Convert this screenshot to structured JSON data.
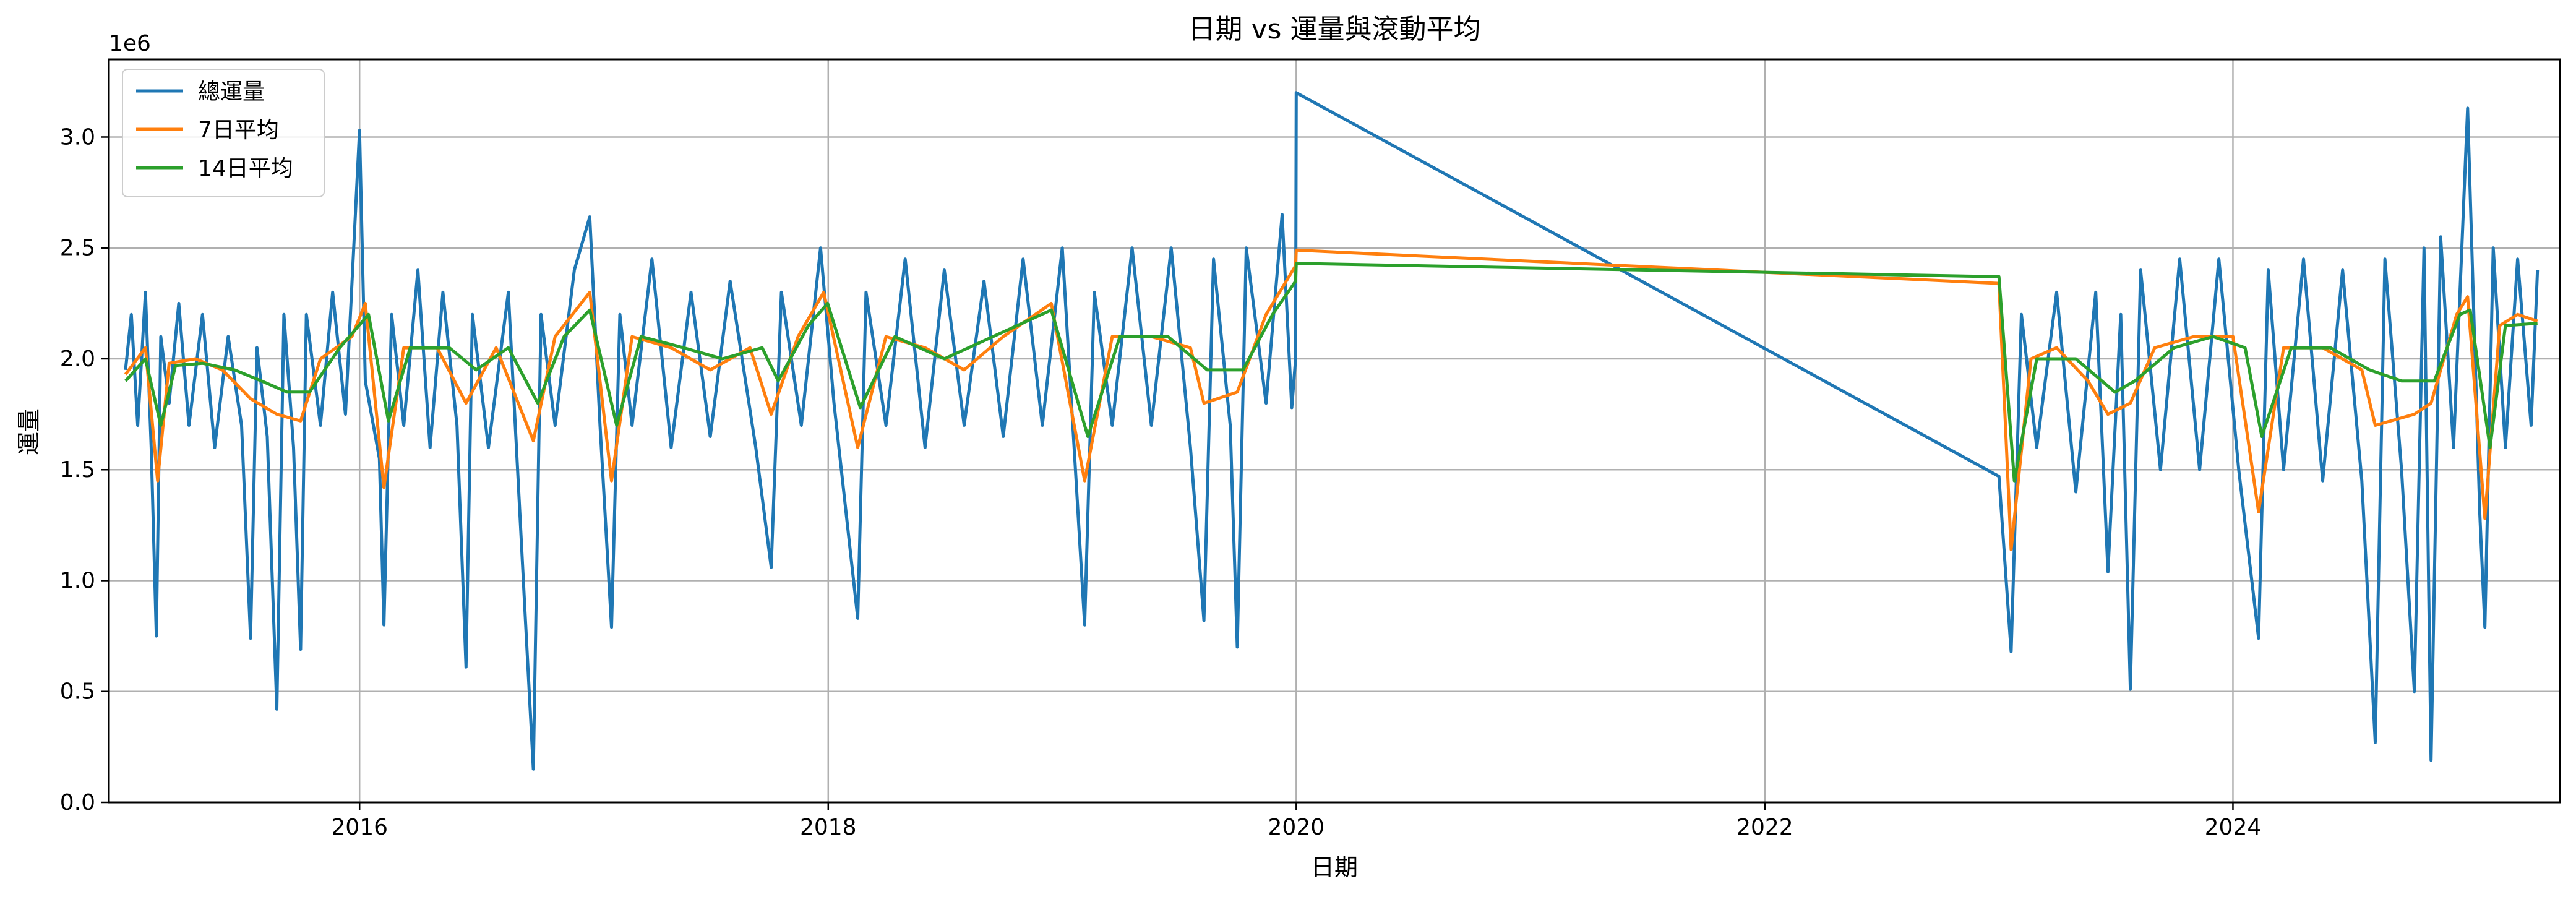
{
  "chart_data": {
    "type": "line",
    "title": "日期 vs 運量與滾動平均",
    "xlabel": "日期",
    "ylabel": "運量",
    "y_multiplier_label": "1e6",
    "xlim": [
      "2014-12-06",
      "2025-05-25"
    ],
    "ylim": [
      0,
      3.35
    ],
    "x_ticks": [
      "2016",
      "2018",
      "2020",
      "2022",
      "2024"
    ],
    "y_ticks": [
      "0.0",
      "0.5",
      "1.0",
      "1.5",
      "2.0",
      "2.5",
      "3.0"
    ],
    "grid": true,
    "legend_position": "upper-left",
    "series": [
      {
        "name": "總運量",
        "color": "#1f77b4",
        "note": "daily values in millions; original series is dense daily data, sampled here",
        "points": [
          [
            "2015-01-01",
            1.95
          ],
          [
            "2015-01-10",
            2.2
          ],
          [
            "2015-01-20",
            1.7
          ],
          [
            "2015-02-01",
            2.3
          ],
          [
            "2015-02-10",
            1.6
          ],
          [
            "2015-02-18",
            0.75
          ],
          [
            "2015-02-25",
            2.1
          ],
          [
            "2015-03-10",
            1.8
          ],
          [
            "2015-03-25",
            2.25
          ],
          [
            "2015-04-10",
            1.7
          ],
          [
            "2015-05-01",
            2.2
          ],
          [
            "2015-05-20",
            1.6
          ],
          [
            "2015-06-10",
            2.1
          ],
          [
            "2015-07-01",
            1.7
          ],
          [
            "2015-07-15",
            0.74
          ],
          [
            "2015-07-25",
            2.05
          ],
          [
            "2015-08-10",
            1.65
          ],
          [
            "2015-08-25",
            0.42
          ],
          [
            "2015-09-05",
            2.2
          ],
          [
            "2015-09-20",
            1.6
          ],
          [
            "2015-10-01",
            0.69
          ],
          [
            "2015-10-10",
            2.2
          ],
          [
            "2015-11-01",
            1.7
          ],
          [
            "2015-11-20",
            2.3
          ],
          [
            "2015-12-10",
            1.75
          ],
          [
            "2016-01-01",
            3.03
          ],
          [
            "2016-01-10",
            1.9
          ],
          [
            "2016-02-01",
            1.55
          ],
          [
            "2016-02-08",
            0.8
          ],
          [
            "2016-02-20",
            2.2
          ],
          [
            "2016-03-10",
            1.7
          ],
          [
            "2016-04-01",
            2.4
          ],
          [
            "2016-04-20",
            1.6
          ],
          [
            "2016-05-10",
            2.3
          ],
          [
            "2016-06-01",
            1.7
          ],
          [
            "2016-06-15",
            0.61
          ],
          [
            "2016-06-25",
            2.2
          ],
          [
            "2016-07-20",
            1.6
          ],
          [
            "2016-08-20",
            2.3
          ],
          [
            "2016-09-15",
            0.86
          ],
          [
            "2016-09-28",
            0.15
          ],
          [
            "2016-10-10",
            2.2
          ],
          [
            "2016-11-01",
            1.7
          ],
          [
            "2016-12-01",
            2.4
          ],
          [
            "2016-12-25",
            2.64
          ],
          [
            "2017-01-10",
            1.7
          ],
          [
            "2017-01-28",
            0.79
          ],
          [
            "2017-02-10",
            2.2
          ],
          [
            "2017-03-01",
            1.7
          ],
          [
            "2017-04-01",
            2.45
          ],
          [
            "2017-05-01",
            1.6
          ],
          [
            "2017-06-01",
            2.3
          ],
          [
            "2017-07-01",
            1.65
          ],
          [
            "2017-08-01",
            2.35
          ],
          [
            "2017-09-10",
            1.6
          ],
          [
            "2017-10-04",
            1.06
          ],
          [
            "2017-10-20",
            2.3
          ],
          [
            "2017-11-20",
            1.7
          ],
          [
            "2017-12-20",
            2.5
          ],
          [
            "2018-01-10",
            1.8
          ],
          [
            "2018-02-16",
            0.83
          ],
          [
            "2018-03-01",
            2.3
          ],
          [
            "2018-04-01",
            1.7
          ],
          [
            "2018-05-01",
            2.45
          ],
          [
            "2018-06-01",
            1.6
          ],
          [
            "2018-07-01",
            2.4
          ],
          [
            "2018-08-01",
            1.7
          ],
          [
            "2018-09-01",
            2.35
          ],
          [
            "2018-10-01",
            1.65
          ],
          [
            "2018-11-01",
            2.45
          ],
          [
            "2018-12-01",
            1.7
          ],
          [
            "2019-01-01",
            2.5
          ],
          [
            "2019-02-05",
            0.8
          ],
          [
            "2019-02-20",
            2.3
          ],
          [
            "2019-03-20",
            1.7
          ],
          [
            "2019-04-20",
            2.5
          ],
          [
            "2019-05-20",
            1.7
          ],
          [
            "2019-06-20",
            2.5
          ],
          [
            "2019-07-20",
            1.6
          ],
          [
            "2019-08-10",
            0.82
          ],
          [
            "2019-08-25",
            2.45
          ],
          [
            "2019-09-20",
            1.7
          ],
          [
            "2019-10-01",
            0.7
          ],
          [
            "2019-10-15",
            2.5
          ],
          [
            "2019-11-15",
            1.8
          ],
          [
            "2019-12-10",
            2.65
          ],
          [
            "2019-12-25",
            1.78
          ],
          [
            "2019-12-31",
            2.0
          ],
          [
            "2020-01-01",
            3.2
          ],
          [
            "2023-01-01",
            1.47
          ],
          [
            "2023-01-20",
            0.68
          ],
          [
            "2023-02-05",
            2.2
          ],
          [
            "2023-03-01",
            1.6
          ],
          [
            "2023-04-01",
            2.3
          ],
          [
            "2023-05-01",
            1.4
          ],
          [
            "2023-06-01",
            2.3
          ],
          [
            "2023-06-20",
            1.04
          ],
          [
            "2023-07-10",
            2.2
          ],
          [
            "2023-07-25",
            0.51
          ],
          [
            "2023-08-10",
            2.4
          ],
          [
            "2023-09-10",
            1.5
          ],
          [
            "2023-10-10",
            2.45
          ],
          [
            "2023-11-10",
            1.5
          ],
          [
            "2023-12-10",
            2.45
          ],
          [
            "2024-01-10",
            1.5
          ],
          [
            "2024-02-10",
            0.74
          ],
          [
            "2024-02-25",
            2.4
          ],
          [
            "2024-03-20",
            1.5
          ],
          [
            "2024-04-20",
            2.45
          ],
          [
            "2024-05-20",
            1.45
          ],
          [
            "2024-06-20",
            2.4
          ],
          [
            "2024-07-20",
            1.45
          ],
          [
            "2024-08-10",
            0.27
          ],
          [
            "2024-08-25",
            2.45
          ],
          [
            "2024-09-20",
            1.5
          ],
          [
            "2024-10-10",
            0.5
          ],
          [
            "2024-10-25",
            2.5
          ],
          [
            "2024-11-05",
            0.19
          ],
          [
            "2024-11-20",
            2.55
          ],
          [
            "2024-12-10",
            1.6
          ],
          [
            "2025-01-01",
            3.13
          ],
          [
            "2025-01-20",
            1.3
          ],
          [
            "2025-01-28",
            0.79
          ],
          [
            "2025-02-10",
            2.5
          ],
          [
            "2025-03-01",
            1.6
          ],
          [
            "2025-03-20",
            2.45
          ],
          [
            "2025-04-10",
            1.7
          ],
          [
            "2025-04-20",
            2.4
          ]
        ]
      },
      {
        "name": "7日平均",
        "color": "#ff7f0e",
        "points": [
          [
            "2015-01-01",
            1.93
          ],
          [
            "2015-02-01",
            2.05
          ],
          [
            "2015-02-20",
            1.45
          ],
          [
            "2015-03-10",
            1.98
          ],
          [
            "2015-04-20",
            2.0
          ],
          [
            "2015-06-01",
            1.95
          ],
          [
            "2015-07-15",
            1.82
          ],
          [
            "2015-08-25",
            1.75
          ],
          [
            "2015-10-01",
            1.72
          ],
          [
            "2015-11-01",
            2.0
          ],
          [
            "2015-12-20",
            2.1
          ],
          [
            "2016-01-10",
            2.25
          ],
          [
            "2016-02-08",
            1.42
          ],
          [
            "2016-03-10",
            2.05
          ],
          [
            "2016-05-01",
            2.05
          ],
          [
            "2016-06-15",
            1.8
          ],
          [
            "2016-08-01",
            2.05
          ],
          [
            "2016-09-28",
            1.63
          ],
          [
            "2016-11-01",
            2.1
          ],
          [
            "2016-12-25",
            2.3
          ],
          [
            "2017-01-28",
            1.45
          ],
          [
            "2017-03-01",
            2.1
          ],
          [
            "2017-05-01",
            2.05
          ],
          [
            "2017-07-01",
            1.95
          ],
          [
            "2017-09-01",
            2.05
          ],
          [
            "2017-10-04",
            1.75
          ],
          [
            "2017-11-15",
            2.1
          ],
          [
            "2017-12-25",
            2.3
          ],
          [
            "2018-02-16",
            1.6
          ],
          [
            "2018-04-01",
            2.1
          ],
          [
            "2018-06-01",
            2.05
          ],
          [
            "2018-08-01",
            1.95
          ],
          [
            "2018-10-01",
            2.1
          ],
          [
            "2018-12-15",
            2.25
          ],
          [
            "2019-02-05",
            1.45
          ],
          [
            "2019-03-20",
            2.1
          ],
          [
            "2019-05-20",
            2.1
          ],
          [
            "2019-07-20",
            2.05
          ],
          [
            "2019-08-10",
            1.8
          ],
          [
            "2019-10-01",
            1.85
          ],
          [
            "2019-11-15",
            2.2
          ],
          [
            "2019-12-31",
            2.42
          ],
          [
            "2020-01-01",
            2.49
          ],
          [
            "2023-01-01",
            2.34
          ],
          [
            "2023-01-20",
            1.14
          ],
          [
            "2023-02-20",
            2.0
          ],
          [
            "2023-04-01",
            2.05
          ],
          [
            "2023-05-20",
            1.9
          ],
          [
            "2023-06-20",
            1.75
          ],
          [
            "2023-07-25",
            1.8
          ],
          [
            "2023-09-01",
            2.05
          ],
          [
            "2023-11-01",
            2.1
          ],
          [
            "2024-01-01",
            2.1
          ],
          [
            "2024-02-10",
            1.31
          ],
          [
            "2024-03-20",
            2.05
          ],
          [
            "2024-05-20",
            2.05
          ],
          [
            "2024-07-20",
            1.95
          ],
          [
            "2024-08-10",
            1.7
          ],
          [
            "2024-10-10",
            1.75
          ],
          [
            "2024-11-05",
            1.8
          ],
          [
            "2024-12-15",
            2.2
          ],
          [
            "2025-01-01",
            2.28
          ],
          [
            "2025-01-28",
            1.28
          ],
          [
            "2025-02-20",
            2.15
          ],
          [
            "2025-03-20",
            2.2
          ],
          [
            "2025-04-20",
            2.17
          ]
        ]
      },
      {
        "name": "14日平均",
        "color": "#2ca02c",
        "points": [
          [
            "2015-01-01",
            1.9
          ],
          [
            "2015-02-01",
            2.0
          ],
          [
            "2015-02-25",
            1.7
          ],
          [
            "2015-03-20",
            1.97
          ],
          [
            "2015-05-01",
            1.98
          ],
          [
            "2015-06-20",
            1.95
          ],
          [
            "2015-08-01",
            1.9
          ],
          [
            "2015-09-10",
            1.85
          ],
          [
            "2015-10-15",
            1.85
          ],
          [
            "2015-12-01",
            2.05
          ],
          [
            "2016-01-15",
            2.2
          ],
          [
            "2016-02-15",
            1.72
          ],
          [
            "2016-03-20",
            2.05
          ],
          [
            "2016-05-20",
            2.05
          ],
          [
            "2016-07-01",
            1.95
          ],
          [
            "2016-08-20",
            2.05
          ],
          [
            "2016-10-05",
            1.8
          ],
          [
            "2016-11-15",
            2.1
          ],
          [
            "2016-12-25",
            2.22
          ],
          [
            "2017-02-05",
            1.7
          ],
          [
            "2017-03-15",
            2.1
          ],
          [
            "2017-05-20",
            2.05
          ],
          [
            "2017-07-20",
            2.0
          ],
          [
            "2017-09-20",
            2.05
          ],
          [
            "2017-10-15",
            1.9
          ],
          [
            "2017-12-01",
            2.15
          ],
          [
            "2017-12-31",
            2.25
          ],
          [
            "2018-02-20",
            1.78
          ],
          [
            "2018-04-15",
            2.1
          ],
          [
            "2018-07-01",
            2.0
          ],
          [
            "2018-09-15",
            2.1
          ],
          [
            "2018-12-15",
            2.22
          ],
          [
            "2019-02-10",
            1.65
          ],
          [
            "2019-04-01",
            2.1
          ],
          [
            "2019-06-15",
            2.1
          ],
          [
            "2019-08-15",
            1.95
          ],
          [
            "2019-10-10",
            1.95
          ],
          [
            "2019-11-25",
            2.2
          ],
          [
            "2019-12-31",
            2.35
          ],
          [
            "2020-01-01",
            2.43
          ],
          [
            "2023-01-01",
            2.37
          ],
          [
            "2023-01-25",
            1.45
          ],
          [
            "2023-03-01",
            2.0
          ],
          [
            "2023-05-01",
            2.0
          ],
          [
            "2023-07-01",
            1.85
          ],
          [
            "2023-08-01",
            1.9
          ],
          [
            "2023-10-01",
            2.05
          ],
          [
            "2023-12-01",
            2.1
          ],
          [
            "2024-01-20",
            2.05
          ],
          [
            "2024-02-15",
            1.65
          ],
          [
            "2024-04-01",
            2.05
          ],
          [
            "2024-06-01",
            2.05
          ],
          [
            "2024-08-01",
            1.95
          ],
          [
            "2024-09-20",
            1.9
          ],
          [
            "2024-11-10",
            1.9
          ],
          [
            "2024-12-20",
            2.2
          ],
          [
            "2025-01-05",
            2.22
          ],
          [
            "2025-02-05",
            1.6
          ],
          [
            "2025-03-01",
            2.15
          ],
          [
            "2025-04-20",
            2.16
          ]
        ]
      }
    ]
  }
}
